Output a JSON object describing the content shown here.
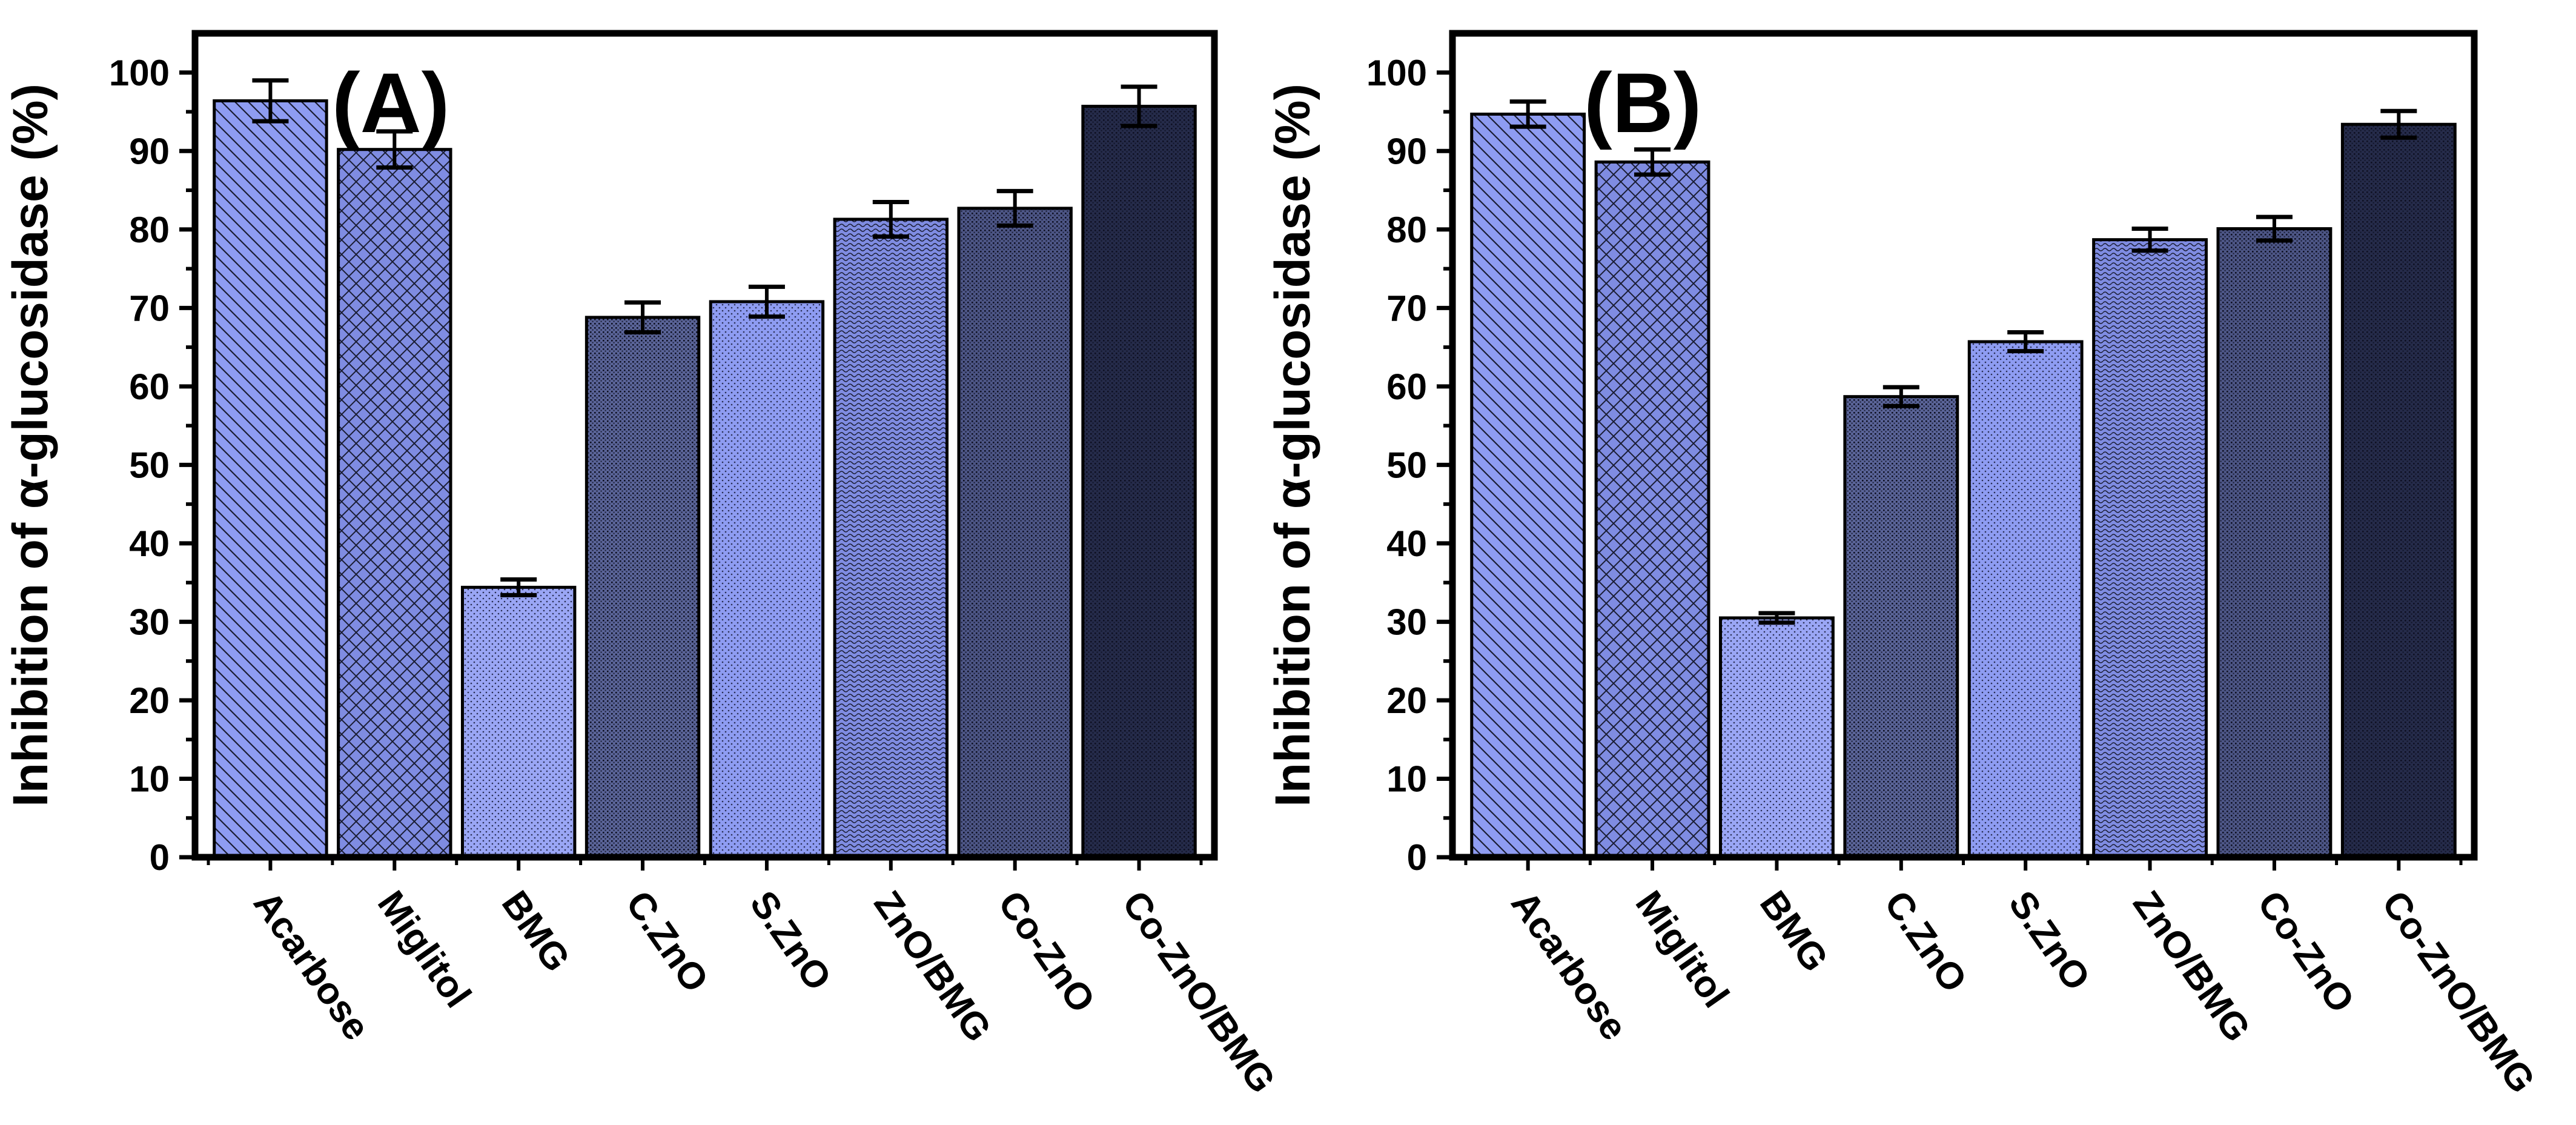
{
  "chart_data": [
    {
      "type": "bar",
      "panel_label": "(A)",
      "title": "",
      "xlabel": "",
      "ylabel": "Inhibition of α-glucosidase (%)",
      "ylim": [
        0,
        105
      ],
      "yticks": [
        0,
        10,
        20,
        30,
        40,
        50,
        60,
        70,
        80,
        90,
        100
      ],
      "grid": false,
      "categories": [
        "Acarbose",
        "Miglitol",
        "BMG",
        "C.ZnO",
        "S.ZnO",
        "ZnO/BMG",
        "Co-ZnO",
        "Co-ZnO/BMG"
      ],
      "values": [
        96.4,
        90.2,
        34.4,
        68.8,
        70.8,
        81.3,
        82.7,
        95.7
      ],
      "errors": [
        2.6,
        2.3,
        1.0,
        1.9,
        1.9,
        2.2,
        2.2,
        2.5
      ],
      "colors": [
        "#8e9cf2",
        "#7f8ce2",
        "#9aa6f5",
        "#5a6498",
        "#8e9cf2",
        "#7f8ce2",
        "#4d5686",
        "#252b4a"
      ],
      "patterns": [
        "diag",
        "cross",
        "dots",
        "dense",
        "dots",
        "wave",
        "dense",
        "dense"
      ]
    },
    {
      "type": "bar",
      "panel_label": "(B)",
      "title": "",
      "xlabel": "",
      "ylabel": "Inhibition of α-glucosidase (%)",
      "ylim": [
        0,
        105
      ],
      "yticks": [
        0,
        10,
        20,
        30,
        40,
        50,
        60,
        70,
        80,
        90,
        100
      ],
      "grid": false,
      "categories": [
        "Acarbose",
        "Miglitol",
        "BMG",
        "C.ZnO",
        "S.ZnO",
        "ZnO/BMG",
        "Co-ZnO",
        "Co-ZnO/BMG"
      ],
      "values": [
        94.7,
        88.6,
        30.5,
        58.7,
        65.7,
        78.7,
        80.1,
        93.4
      ],
      "errors": [
        1.6,
        1.6,
        0.6,
        1.2,
        1.2,
        1.4,
        1.5,
        1.7
      ],
      "colors": [
        "#8e9cf2",
        "#7f8ce2",
        "#9aa6f5",
        "#5a6498",
        "#8e9cf2",
        "#7f8ce2",
        "#4d5686",
        "#252b4a"
      ],
      "patterns": [
        "diag",
        "cross",
        "dots",
        "dense",
        "dots",
        "wave",
        "dense",
        "dense"
      ]
    }
  ]
}
